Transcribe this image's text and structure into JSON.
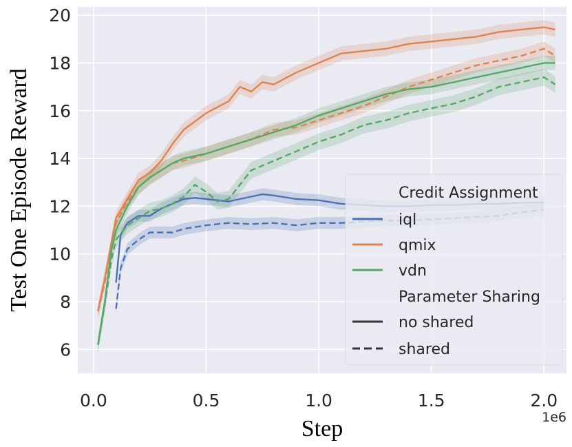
{
  "chart_data": {
    "type": "line",
    "xlabel": "Step",
    "ylabel": "Test One Episode Reward",
    "x_offset_label": "1e6",
    "xlim": [
      -0.07,
      2.1
    ],
    "ylim": [
      5.0,
      20.35
    ],
    "x_ticks": [
      0.0,
      0.5,
      1.0,
      1.5,
      2.0
    ],
    "x_tick_labels": [
      "0.0",
      "0.5",
      "1.0",
      "1.5",
      "2.0"
    ],
    "y_ticks": [
      6,
      8,
      10,
      12,
      14,
      16,
      18,
      20
    ],
    "y_tick_labels": [
      "6",
      "8",
      "10",
      "12",
      "14",
      "16",
      "18",
      "20"
    ],
    "grid": true,
    "colors": {
      "iql": "#4c72b0",
      "qmix": "#dd8452",
      "vdn": "#55a868",
      "background": "#eaeaf2",
      "grid": "#ffffff"
    },
    "legend": {
      "placement": "lower-right",
      "title_hue": "Credit Assignment",
      "hue_items": [
        "iql",
        "qmix",
        "vdn"
      ],
      "title_style": "Parameter Sharing",
      "style_items": [
        "no shared",
        "shared"
      ]
    },
    "series": [
      {
        "name": "iql",
        "style": "no shared",
        "color": "#4c72b0",
        "band": 0.25,
        "x": [
          0.1,
          0.12,
          0.15,
          0.2,
          0.25,
          0.3,
          0.35,
          0.4,
          0.45,
          0.5,
          0.6,
          0.7,
          0.75,
          0.8,
          0.9,
          1.0,
          1.1,
          1.2,
          1.3,
          1.4,
          1.5,
          1.6,
          1.7,
          1.8,
          1.9,
          2.0
        ],
        "y": [
          8.8,
          10.8,
          11.3,
          11.6,
          11.6,
          11.9,
          12.1,
          12.3,
          12.35,
          12.3,
          12.2,
          12.4,
          12.5,
          12.45,
          12.3,
          12.25,
          12.1,
          12.05,
          12.0,
          12.0,
          12.05,
          12.05,
          12.1,
          12.1,
          12.15,
          12.15
        ]
      },
      {
        "name": "iql",
        "style": "shared",
        "color": "#4c72b0",
        "band": 0.25,
        "x": [
          0.1,
          0.12,
          0.15,
          0.2,
          0.25,
          0.3,
          0.35,
          0.4,
          0.5,
          0.6,
          0.7,
          0.8,
          0.9,
          1.0,
          1.1,
          1.2,
          1.3,
          1.4,
          1.5,
          1.6,
          1.7,
          1.8,
          1.9,
          2.0
        ],
        "y": [
          7.7,
          9.4,
          10.2,
          10.6,
          10.9,
          10.9,
          10.9,
          11.05,
          11.2,
          11.3,
          11.25,
          11.3,
          11.2,
          11.3,
          11.3,
          11.35,
          11.4,
          11.4,
          11.45,
          11.5,
          11.55,
          11.6,
          11.75,
          11.85
        ]
      },
      {
        "name": "qmix",
        "style": "no shared",
        "color": "#dd8452",
        "band": 0.3,
        "x": [
          0.02,
          0.05,
          0.08,
          0.1,
          0.15,
          0.2,
          0.25,
          0.3,
          0.35,
          0.4,
          0.5,
          0.6,
          0.65,
          0.7,
          0.75,
          0.8,
          0.9,
          1.0,
          1.1,
          1.2,
          1.3,
          1.4,
          1.5,
          1.6,
          1.7,
          1.8,
          1.9,
          2.0,
          2.05
        ],
        "y": [
          7.6,
          9.0,
          10.5,
          11.5,
          12.3,
          13.1,
          13.4,
          13.9,
          14.6,
          15.2,
          15.9,
          16.4,
          17.0,
          16.8,
          17.2,
          17.1,
          17.6,
          18.0,
          18.4,
          18.5,
          18.6,
          18.8,
          18.9,
          19.0,
          19.1,
          19.3,
          19.4,
          19.5,
          19.4
        ]
      },
      {
        "name": "qmix",
        "style": "shared",
        "color": "#dd8452",
        "band": 0.3,
        "x": [
          0.02,
          0.05,
          0.08,
          0.1,
          0.15,
          0.2,
          0.25,
          0.3,
          0.35,
          0.4,
          0.5,
          0.6,
          0.7,
          0.8,
          0.9,
          1.0,
          1.1,
          1.2,
          1.3,
          1.4,
          1.5,
          1.6,
          1.7,
          1.8,
          1.9,
          2.0,
          2.05
        ],
        "y": [
          7.6,
          8.8,
          10.4,
          11.3,
          12.2,
          12.8,
          13.2,
          13.5,
          13.8,
          13.9,
          14.2,
          14.5,
          14.8,
          15.2,
          15.3,
          15.6,
          15.9,
          16.2,
          16.6,
          17.0,
          17.3,
          17.6,
          17.9,
          18.1,
          18.3,
          18.6,
          18.3
        ]
      },
      {
        "name": "vdn",
        "style": "no shared",
        "color": "#55a868",
        "band": 0.3,
        "x": [
          0.02,
          0.05,
          0.08,
          0.1,
          0.15,
          0.2,
          0.25,
          0.3,
          0.35,
          0.4,
          0.5,
          0.6,
          0.7,
          0.8,
          0.9,
          1.0,
          1.1,
          1.2,
          1.3,
          1.4,
          1.5,
          1.6,
          1.7,
          1.8,
          1.9,
          2.0,
          2.05
        ],
        "y": [
          6.2,
          8.0,
          10.2,
          11.0,
          12.0,
          12.8,
          13.2,
          13.5,
          13.8,
          14.0,
          14.2,
          14.5,
          14.8,
          15.1,
          15.4,
          15.8,
          16.1,
          16.4,
          16.7,
          16.9,
          17.0,
          17.2,
          17.4,
          17.6,
          17.8,
          18.0,
          18.0
        ]
      },
      {
        "name": "vdn",
        "style": "shared",
        "color": "#55a868",
        "band": 0.35,
        "x": [
          0.02,
          0.05,
          0.08,
          0.1,
          0.15,
          0.2,
          0.25,
          0.3,
          0.35,
          0.4,
          0.45,
          0.5,
          0.55,
          0.6,
          0.7,
          0.8,
          0.9,
          1.0,
          1.1,
          1.2,
          1.3,
          1.4,
          1.5,
          1.6,
          1.7,
          1.8,
          1.9,
          2.0,
          2.05
        ],
        "y": [
          6.2,
          7.9,
          9.8,
          10.6,
          11.2,
          11.5,
          11.8,
          11.9,
          12.1,
          12.4,
          12.9,
          12.6,
          12.2,
          12.3,
          13.5,
          13.9,
          14.3,
          14.7,
          15.0,
          15.4,
          15.6,
          15.9,
          16.1,
          16.3,
          16.6,
          17.0,
          17.2,
          17.4,
          17.1
        ]
      }
    ]
  }
}
